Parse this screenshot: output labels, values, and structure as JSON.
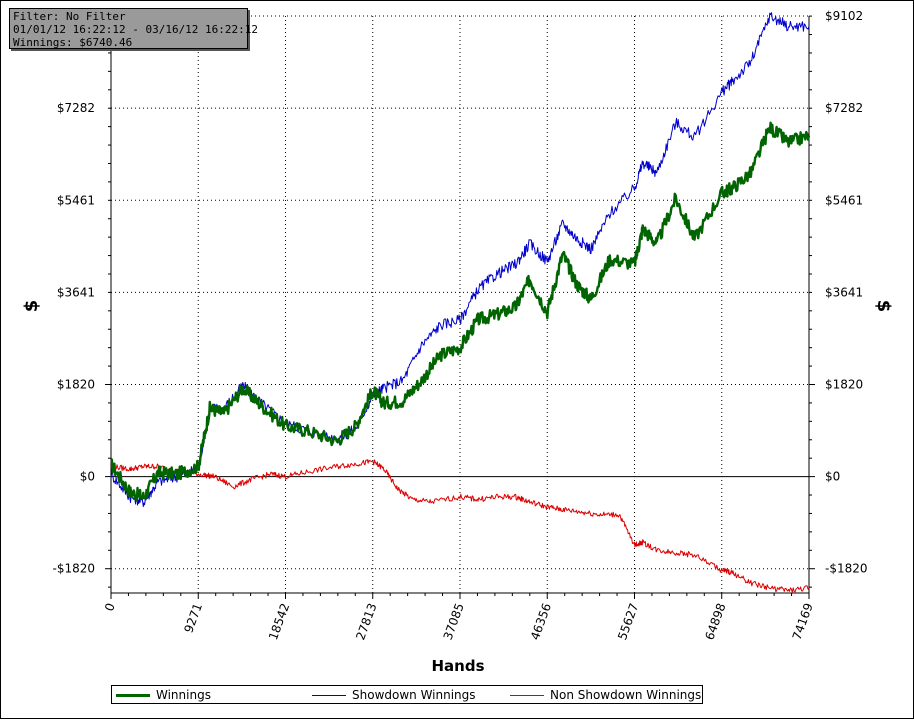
{
  "info_box": {
    "filter": "Filter: No Filter",
    "date_range": "01/01/12 16:22:12 - 03/16/12 16:22:12",
    "winnings": "Winnings: $6740.46"
  },
  "legend": [
    {
      "label": "Winnings",
      "color": "#006400"
    },
    {
      "label": "Showdown Winnings",
      "color": "#0000cc"
    },
    {
      "label": "Non Showdown Winnings",
      "color": "#dd0000"
    }
  ],
  "chart_data": {
    "type": "line",
    "title": "",
    "xlabel": "Hands",
    "ylabel": "$",
    "xlim": [
      0,
      74169
    ],
    "ylim": [
      -2300,
      9102
    ],
    "x_ticks": [
      0,
      9271,
      18542,
      27813,
      37085,
      46356,
      55627,
      64898,
      74169
    ],
    "x_tick_labels": [
      "0",
      "9271",
      "18542",
      "27813",
      "37085",
      "46356",
      "55627",
      "64898",
      "74169"
    ],
    "y_ticks": [
      -1820,
      0,
      1820,
      3641,
      5461,
      7282,
      9102
    ],
    "y_tick_labels": [
      "-$1820",
      "$0",
      "$1820",
      "$3641",
      "$5461",
      "$7282",
      "$9102"
    ],
    "grid": true,
    "legend_position": "bottom",
    "series": [
      {
        "name": "Winnings",
        "color": "#006400",
        "x": [
          0,
          2000,
          3500,
          5000,
          7000,
          9271,
          10500,
          12000,
          14000,
          16000,
          18542,
          21000,
          24000,
          26000,
          27813,
          29000,
          31000,
          33000,
          35000,
          37085,
          39000,
          41000,
          43000,
          44500,
          46356,
          48000,
          49500,
          51000,
          53000,
          55627,
          56500,
          58000,
          60000,
          62000,
          64898,
          66000,
          68000,
          70000,
          72000,
          74169
        ],
        "y": [
          250,
          -300,
          -400,
          80,
          50,
          200,
          1350,
          1250,
          1750,
          1400,
          1000,
          900,
          700,
          1000,
          1700,
          1450,
          1500,
          1900,
          2400,
          2550,
          3100,
          3200,
          3350,
          3900,
          3250,
          4400,
          3800,
          3500,
          4300,
          4200,
          4900,
          4600,
          5500,
          4700,
          5600,
          5700,
          6000,
          6900,
          6600,
          6740
        ]
      },
      {
        "name": "Showdown Winnings",
        "color": "#0000cc",
        "x": [
          0,
          2000,
          3500,
          5000,
          7000,
          9271,
          10500,
          12000,
          14000,
          16000,
          18542,
          21000,
          24000,
          26000,
          27813,
          29000,
          31000,
          33000,
          35000,
          37085,
          39000,
          41000,
          43000,
          44500,
          46356,
          48000,
          49500,
          51000,
          53000,
          55627,
          56500,
          58000,
          60000,
          62000,
          64898,
          66000,
          68000,
          70000,
          72000,
          74169
        ],
        "y": [
          50,
          -400,
          -500,
          -100,
          0,
          150,
          1350,
          1350,
          1800,
          1450,
          1050,
          900,
          750,
          950,
          1600,
          1750,
          1900,
          2600,
          3000,
          3100,
          3700,
          4000,
          4200,
          4600,
          4250,
          5000,
          4700,
          4500,
          5200,
          5700,
          6200,
          6000,
          7000,
          6700,
          7600,
          7800,
          8200,
          9102,
          8900,
          8900
        ]
      },
      {
        "name": "Non Showdown Winnings",
        "color": "#dd0000",
        "x": [
          0,
          2000,
          3500,
          5000,
          7000,
          9271,
          11000,
          13000,
          15000,
          17000,
          18542,
          21000,
          24000,
          26000,
          27813,
          29000,
          30500,
          32000,
          34000,
          37085,
          39000,
          41000,
          43000,
          44500,
          46356,
          48000,
          50000,
          52000,
          54000,
          55627,
          56500,
          58000,
          60000,
          62000,
          64898,
          66000,
          68000,
          70000,
          72000,
          74169
        ],
        "y": [
          200,
          150,
          200,
          200,
          100,
          50,
          0,
          -200,
          -50,
          50,
          0,
          100,
          200,
          250,
          300,
          150,
          -250,
          -450,
          -500,
          -400,
          -450,
          -400,
          -400,
          -500,
          -600,
          -650,
          -700,
          -750,
          -750,
          -1350,
          -1300,
          -1450,
          -1500,
          -1550,
          -1850,
          -1900,
          -2100,
          -2200,
          -2250,
          -2200
        ]
      }
    ]
  }
}
